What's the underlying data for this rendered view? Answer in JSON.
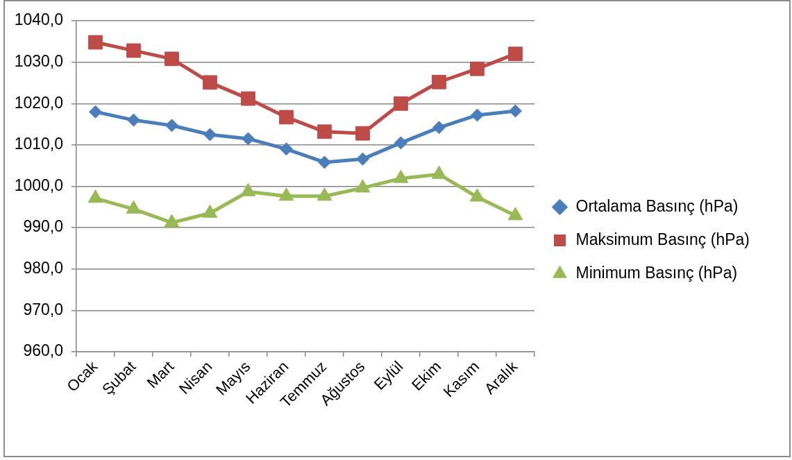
{
  "chart_data": {
    "type": "line",
    "categories": [
      "Ocak",
      "Şubat",
      "Mart",
      "Nisan",
      "Mayıs",
      "Haziran",
      "Temmuz",
      "Ağustos",
      "Eylül",
      "Ekim",
      "Kasım",
      "Aralık"
    ],
    "series": [
      {
        "name": "Ortalama Basınç (hPa)",
        "color": "#4a7ebb",
        "marker": "diamond",
        "values": [
          1018.0,
          1016.0,
          1014.7,
          1012.5,
          1011.5,
          1009.0,
          1005.8,
          1006.6,
          1010.5,
          1014.2,
          1017.2,
          1018.2
        ]
      },
      {
        "name": "Maksimum Basınç (hPa)",
        "color": "#be4b48",
        "marker": "square",
        "values": [
          1034.8,
          1032.8,
          1030.8,
          1025.1,
          1021.2,
          1016.7,
          1013.2,
          1012.8,
          1020.0,
          1025.2,
          1028.4,
          1032.0
        ]
      },
      {
        "name": "Minimum Basınç (hPa)",
        "color": "#98b954",
        "marker": "triangle",
        "values": [
          997.1,
          994.5,
          991.2,
          993.5,
          998.7,
          997.6,
          997.6,
          999.6,
          1001.9,
          1002.9,
          997.4,
          992.9
        ]
      }
    ],
    "ylim": [
      960,
      1040
    ],
    "yticks": [
      {
        "value": 960,
        "label": "960,0"
      },
      {
        "value": 970,
        "label": "970,0"
      },
      {
        "value": 980,
        "label": "980,0"
      },
      {
        "value": 990,
        "label": "990,0"
      },
      {
        "value": 1000,
        "label": "1000,0"
      },
      {
        "value": 1010,
        "label": "1010,0"
      },
      {
        "value": 1020,
        "label": "1020,0"
      },
      {
        "value": 1030,
        "label": "1030,0"
      },
      {
        "value": 1040,
        "label": "1040,0"
      }
    ],
    "grid": "y",
    "legend": "right",
    "line_style": "solid"
  }
}
